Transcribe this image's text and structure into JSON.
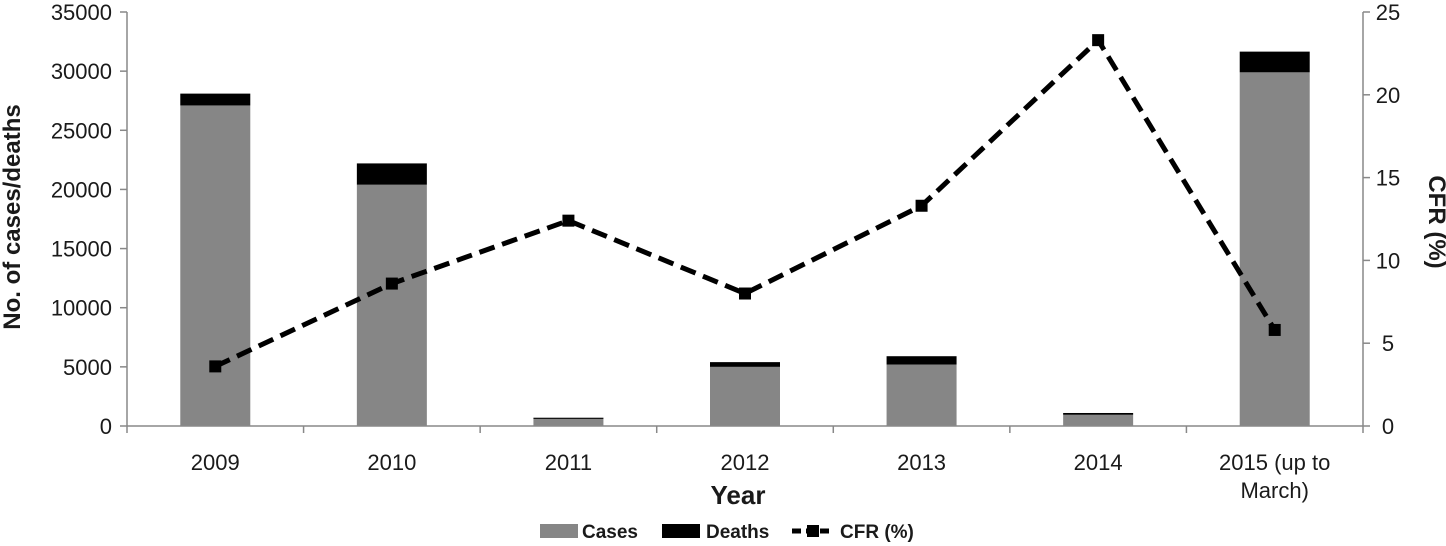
{
  "chart_data": {
    "type": "bar",
    "stacked": true,
    "categories": [
      "2009",
      "2010",
      "2011",
      "2012",
      "2013",
      "2014",
      "2015 (up to March)"
    ],
    "category_lines": [
      [
        "2009"
      ],
      [
        "2010"
      ],
      [
        "2011"
      ],
      [
        "2012"
      ],
      [
        "2013"
      ],
      [
        "2014"
      ],
      [
        "2015 (up to",
        "March)"
      ]
    ],
    "series": [
      {
        "name": "Cases",
        "type": "bar",
        "axis": "left",
        "values": [
          27100,
          20400,
          600,
          5000,
          5200,
          950,
          29900
        ],
        "color": "#868686"
      },
      {
        "name": "Deaths",
        "type": "bar",
        "axis": "left",
        "values": [
          1000,
          1800,
          100,
          400,
          700,
          150,
          1750
        ],
        "color": "#000000"
      },
      {
        "name": "CFR (%)",
        "type": "line",
        "axis": "right",
        "style": "dashed",
        "values": [
          3.6,
          8.6,
          12.4,
          8.0,
          13.3,
          23.3,
          5.8
        ],
        "color": "#000000"
      }
    ],
    "xlabel": "Year",
    "ylabel": "No. of cases/deaths",
    "y2label": "CFR (%)",
    "ylim": [
      0,
      35000
    ],
    "y2lim": [
      0,
      25
    ],
    "yticks": [
      0,
      5000,
      10000,
      15000,
      20000,
      25000,
      30000,
      35000
    ],
    "y2ticks": [
      0,
      5,
      10,
      15,
      20,
      25
    ],
    "grid": false,
    "legend": {
      "position": "bottom",
      "entries": [
        {
          "label": "Cases",
          "marker": "box",
          "color": "#868686"
        },
        {
          "label": "Deaths",
          "marker": "box",
          "color": "#000000"
        },
        {
          "label": "CFR (%)",
          "marker": "dashed-line",
          "color": "#000000"
        }
      ]
    }
  }
}
